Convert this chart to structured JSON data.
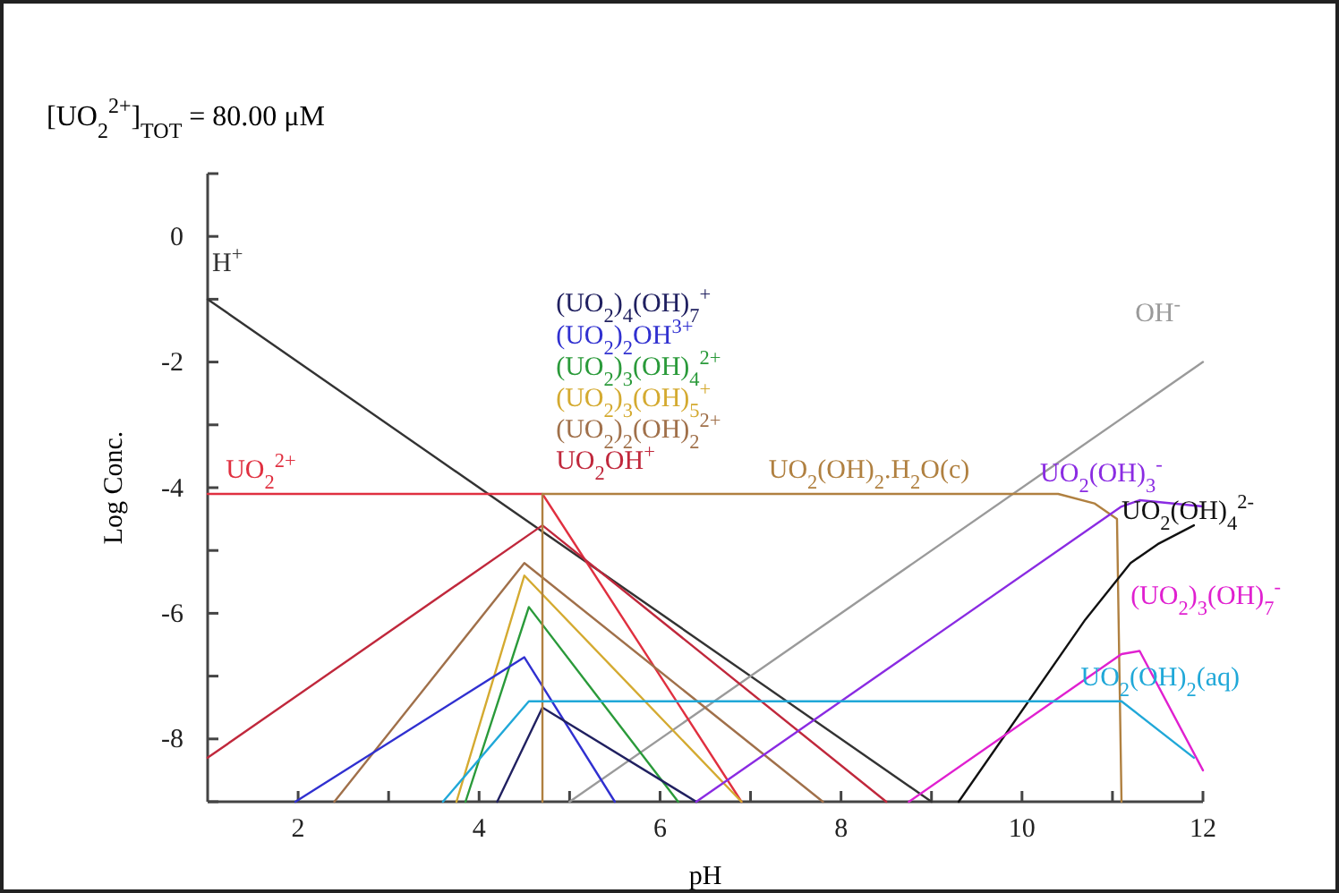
{
  "chart_data": {
    "type": "line",
    "title": "[UO$_{2}$$^{2+}$]$_{TOT}$ =   80.00 μM",
    "xlabel": "pH",
    "ylabel": "Log Conc.",
    "xlim": [
      1,
      12
    ],
    "ylim": [
      -9,
      1
    ],
    "xticks": [
      2,
      {
        "value": 3,
        "label": null
      },
      4,
      {
        "value": 5,
        "label": null
      },
      6,
      {
        "value": 7,
        "label": null
      },
      8,
      {
        "value": 9,
        "label": null
      },
      10,
      {
        "value": 11,
        "label": null
      },
      12
    ],
    "yticks": [
      {
        "value": -9,
        "label": null
      },
      -8,
      {
        "value": -7,
        "label": null
      },
      -6,
      {
        "value": -5,
        "label": null
      },
      -4,
      {
        "value": -3,
        "label": null
      },
      -2,
      {
        "value": -1,
        "label": null
      },
      0,
      {
        "value": 1,
        "label": null
      }
    ],
    "grid": false,
    "marker": "none",
    "line_style": "solid",
    "series": [
      {
        "name": "H$^{+}$",
        "color": "#333333",
        "x": [
          1,
          9
        ],
        "values": [
          -1,
          -9
        ]
      },
      {
        "name": "OH$^{-}$",
        "color": "#9a9a9a",
        "x": [
          5,
          12
        ],
        "values": [
          -9,
          -2
        ]
      },
      {
        "name": "UO$_{2}$$^{2+}$",
        "color": "#e03040",
        "x": [
          1,
          4.7,
          6.9
        ],
        "values": [
          -4.1,
          -4.1,
          -9
        ]
      },
      {
        "name": "UO$_{2}$OH$^{+}$",
        "color": "#c0283c",
        "x": [
          1,
          4.7,
          8.5
        ],
        "values": [
          -8.3,
          -4.6,
          -9
        ]
      },
      {
        "name": "(UO$_{2}$)$_{2}$(OH)$_{2}$$^{2+}$",
        "color": "#a0704a",
        "x": [
          2.4,
          4.5,
          7.8
        ],
        "values": [
          -9,
          -5.2,
          -9
        ]
      },
      {
        "name": "(UO$_{2}$)$_{3}$(OH)$_{5}$$^{+}$",
        "color": "#d4aa30",
        "x": [
          3.75,
          4.5,
          6.9
        ],
        "values": [
          -9,
          -5.4,
          -9
        ]
      },
      {
        "name": "(UO$_{2}$)$_{3}$(OH)$_{4}$$^{2+}$",
        "color": "#2a9a3a",
        "x": [
          3.85,
          4.55,
          6.2
        ],
        "values": [
          -9,
          -5.9,
          -9
        ]
      },
      {
        "name": "(UO$_{2}$)$_{2}$OH$^{3+}$",
        "color": "#3030d0",
        "x": [
          1.97,
          4.5,
          5.5
        ],
        "values": [
          -9,
          -6.7,
          -9
        ]
      },
      {
        "name": "(UO$_{2}$)$_{4}$(OH)$_{7}$$^{+}$",
        "color": "#202060",
        "x": [
          4.2,
          4.7,
          6.4
        ],
        "values": [
          -9,
          -7.5,
          -9
        ]
      },
      {
        "name": "UO$_{2}$(OH)$_{2}$.H$_{2}$O(c)",
        "color": "#b08040",
        "x": [
          4.7,
          4.7,
          10.4,
          10.8,
          11.05,
          11.1
        ],
        "values": [
          -9,
          -4.1,
          -4.1,
          -4.25,
          -4.5,
          -9
        ]
      },
      {
        "name": "UO$_{2}$(OH)$_{3}$$^{-}$",
        "color": "#8a2be2",
        "x": [
          6.4,
          11.1,
          11.3,
          12
        ],
        "values": [
          -9,
          -4.3,
          -4.2,
          -4.3
        ]
      },
      {
        "name": "UO$_{2}$(OH)$_{4}$$^{2-}$",
        "color": "#111111",
        "x": [
          9.3,
          10.7,
          11.2,
          11.5,
          11.9
        ],
        "values": [
          -9,
          -6.1,
          -5.2,
          -4.9,
          -4.6
        ]
      },
      {
        "name": "(UO$_{2}$)$_{3}$(OH)$_{7}$$^{-}$",
        "color": "#e020d0",
        "x": [
          8.75,
          11.1,
          11.3,
          12
        ],
        "values": [
          -9,
          -6.65,
          -6.6,
          -8.5
        ]
      },
      {
        "name": "UO$_{2}$(OH)$_{2}$(aq)",
        "color": "#20a8d8",
        "x": [
          3.6,
          4.55,
          11.1,
          11.9
        ],
        "values": [
          -9,
          -7.4,
          -7.4,
          -8.3
        ]
      }
    ]
  }
}
